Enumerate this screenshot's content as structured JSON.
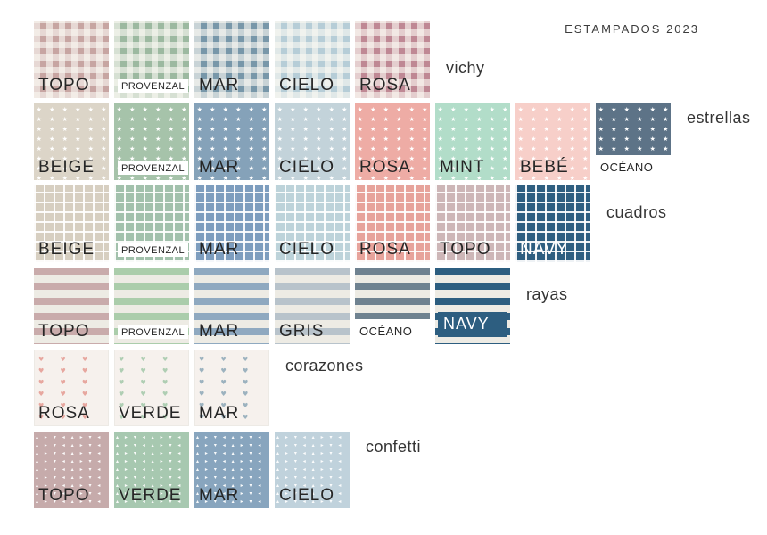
{
  "title": "ESTAMPADOS 2023",
  "page_background": "#ffffff",
  "label_text_color": "#262626",
  "rows": [
    {
      "category": "vichy",
      "pattern": "vichy",
      "swatches": [
        {
          "label": "TOPO",
          "color": "#c7a5a2",
          "style": "large"
        },
        {
          "label": "PROVENZAL",
          "color": "#9cb9a0",
          "style": "chip"
        },
        {
          "label": "MAR",
          "color": "#7897a9",
          "style": "large"
        },
        {
          "label": "CIELO",
          "color": "#b6cdd7",
          "style": "large"
        },
        {
          "label": "ROSA",
          "color": "#bf8894",
          "style": "large"
        }
      ]
    },
    {
      "category": "estrellas",
      "pattern": "estrellas",
      "swatches": [
        {
          "label": "BEIGE",
          "color": "#dcd5c8",
          "style": "large"
        },
        {
          "label": "PROVENZAL",
          "color": "#a6c3aa",
          "style": "chip"
        },
        {
          "label": "MAR",
          "color": "#85a2b9",
          "style": "large"
        },
        {
          "label": "CIELO",
          "color": "#c3d3da",
          "style": "large"
        },
        {
          "label": "ROSA",
          "color": "#eeaca5",
          "style": "large"
        },
        {
          "label": "MINT",
          "color": "#b2ddc9",
          "style": "large"
        },
        {
          "label": "BEBÉ",
          "color": "#f7cfc9",
          "style": "large"
        },
        {
          "label": "OCÉANO",
          "color": "#5d7387",
          "style": "below"
        }
      ]
    },
    {
      "category": "cuadros",
      "pattern": "cuadros",
      "swatches": [
        {
          "label": "BEIGE",
          "color": "#d7cfc1",
          "style": "large"
        },
        {
          "label": "PROVENZAL",
          "color": "#a2c1ac",
          "style": "chip"
        },
        {
          "label": "MAR",
          "color": "#7d9dbe",
          "style": "large"
        },
        {
          "label": "CIELO",
          "color": "#bdd3da",
          "style": "large"
        },
        {
          "label": "ROSA",
          "color": "#e7a39b",
          "style": "large"
        },
        {
          "label": "TOPO",
          "color": "#cdb6b7",
          "style": "large"
        },
        {
          "label": "NAVY",
          "color": "#2e5e80",
          "style": "light"
        }
      ]
    },
    {
      "category": "rayas",
      "pattern": "rayas",
      "swatches": [
        {
          "label": "TOPO",
          "color": "#c9abab",
          "style": "large"
        },
        {
          "label": "PROVENZAL",
          "color": "#abcdab",
          "style": "chip"
        },
        {
          "label": "MAR",
          "color": "#8fa9c0",
          "style": "large"
        },
        {
          "label": "GRIS",
          "color": "#b8c3cb",
          "style": "large"
        },
        {
          "label": "OCÉANO",
          "color": "#6f8290",
          "style": "below"
        },
        {
          "label": "NAVY",
          "color": "#2d5e80",
          "style": "navy"
        }
      ]
    },
    {
      "category": "corazones",
      "pattern": "corazones",
      "swatches": [
        {
          "label": "ROSA",
          "color": "#e59b92",
          "style": "large"
        },
        {
          "label": "VERDE",
          "color": "#a3c8a9",
          "style": "large"
        },
        {
          "label": "MAR",
          "color": "#8da8b7",
          "style": "large"
        }
      ]
    },
    {
      "category": "confetti",
      "pattern": "confetti",
      "swatches": [
        {
          "label": "TOPO",
          "color": "#c6abab",
          "style": "large"
        },
        {
          "label": "VERDE",
          "color": "#a7c8b0",
          "style": "large"
        },
        {
          "label": "MAR",
          "color": "#88a5be",
          "style": "large"
        },
        {
          "label": "CIELO",
          "color": "#c0d2dc",
          "style": "large"
        }
      ]
    }
  ]
}
